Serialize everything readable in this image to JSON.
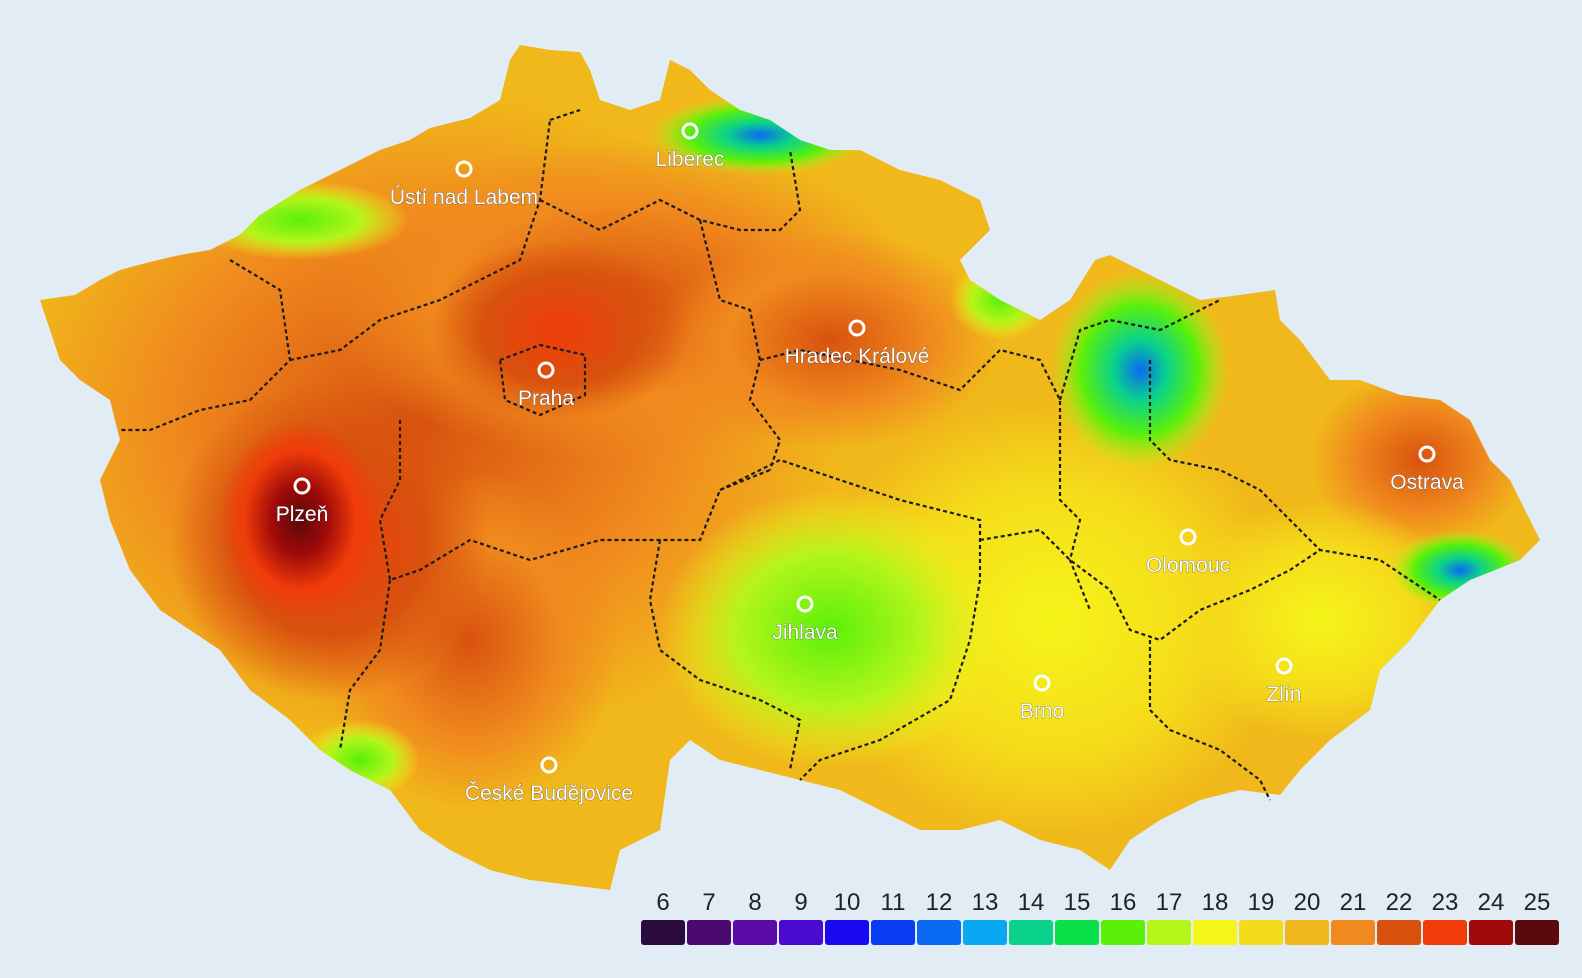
{
  "cities": [
    {
      "name": "Liberec"
    },
    {
      "name": "Ústí nad Labem"
    },
    {
      "name": "Hradec Králové"
    },
    {
      "name": "Praha"
    },
    {
      "name": "Plzeň"
    },
    {
      "name": "Ostrava"
    },
    {
      "name": "Olomouc"
    },
    {
      "name": "Jihlava"
    },
    {
      "name": "Zlín"
    },
    {
      "name": "Brno"
    },
    {
      "name": "České Budějovice"
    }
  ],
  "legend": [
    {
      "value": "6",
      "color": "#2b0a3d"
    },
    {
      "value": "7",
      "color": "#4b0a6e"
    },
    {
      "value": "8",
      "color": "#5a0aa8"
    },
    {
      "value": "9",
      "color": "#4a0ad0"
    },
    {
      "value": "10",
      "color": "#1a0af2"
    },
    {
      "value": "11",
      "color": "#0a3cf2"
    },
    {
      "value": "12",
      "color": "#0a6af2"
    },
    {
      "value": "13",
      "color": "#0aa8f2"
    },
    {
      "value": "14",
      "color": "#0ad28a"
    },
    {
      "value": "15",
      "color": "#0ae04a"
    },
    {
      "value": "16",
      "color": "#5af00a"
    },
    {
      "value": "17",
      "color": "#b4f51a"
    },
    {
      "value": "18",
      "color": "#f5f51a"
    },
    {
      "value": "19",
      "color": "#f5dc1a"
    },
    {
      "value": "20",
      "color": "#f0b81a"
    },
    {
      "value": "21",
      "color": "#f08a1e"
    },
    {
      "value": "22",
      "color": "#d8520e"
    },
    {
      "value": "23",
      "color": "#f03c0a"
    },
    {
      "value": "24",
      "color": "#a00a0a"
    },
    {
      "value": "25",
      "color": "#5a0a0a"
    }
  ]
}
